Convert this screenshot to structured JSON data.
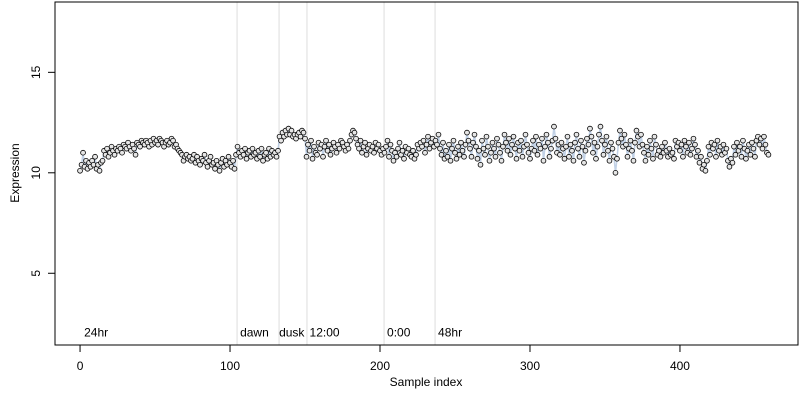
{
  "chart_data": {
    "type": "scatter",
    "xlabel": "Sample index",
    "ylabel": "Expression",
    "xlim": [
      -16.7,
      478.7
    ],
    "ylim": [
      1.43,
      18.5
    ],
    "xticks": [
      0,
      100,
      200,
      300,
      400
    ],
    "yticks": [
      5,
      10,
      15
    ],
    "point_fill": "#e6e6e6",
    "point_stroke": "#000000",
    "line_color": "#a6bddb",
    "vline_color": "#dddddd",
    "annotation_color": "#aaaaaa",
    "vlines": [
      104.7,
      132.7,
      151.3,
      202.7,
      236.7
    ],
    "annotations": [
      {
        "x": 2.7,
        "y": 2,
        "label": "24hr"
      },
      {
        "x": 106.7,
        "y": 2,
        "label": "dawn"
      },
      {
        "x": 132.7,
        "y": 2,
        "label": "dusk"
      },
      {
        "x": 153,
        "y": 2,
        "label": "12:00"
      },
      {
        "x": 204.7,
        "y": 2,
        "label": "0:00"
      },
      {
        "x": 238.7,
        "y": 2,
        "label": "48hr"
      }
    ],
    "x": [
      0,
      1,
      2,
      3,
      4,
      5,
      6,
      7,
      8,
      9,
      10,
      11,
      12,
      13,
      14,
      15,
      16,
      17,
      18,
      19,
      20,
      21,
      22,
      23,
      24,
      25,
      26,
      27,
      28,
      29,
      30,
      31,
      32,
      33,
      34,
      35,
      36,
      37,
      38,
      39,
      40,
      41,
      42,
      43,
      44,
      45,
      46,
      47,
      48,
      49,
      50,
      51,
      52,
      53,
      54,
      55,
      56,
      57,
      58,
      59,
      60,
      61,
      62,
      63,
      64,
      65,
      66,
      67,
      68,
      69,
      70,
      71,
      72,
      73,
      74,
      75,
      76,
      77,
      78,
      79,
      80,
      81,
      82,
      83,
      84,
      85,
      86,
      87,
      88,
      89,
      90,
      91,
      92,
      93,
      94,
      95,
      96,
      97,
      98,
      99,
      100,
      101,
      102,
      103,
      104,
      105,
      106,
      107,
      108,
      109,
      110,
      111,
      112,
      113,
      114,
      115,
      116,
      117,
      118,
      119,
      120,
      121,
      122,
      123,
      124,
      125,
      126,
      127,
      128,
      129,
      130,
      131,
      132,
      133,
      134,
      135,
      136,
      137,
      138,
      139,
      140,
      141,
      142,
      143,
      144,
      145,
      146,
      147,
      148,
      149,
      150,
      151,
      152,
      153,
      154,
      155,
      156,
      157,
      158,
      159,
      160,
      161,
      162,
      163,
      164,
      165,
      166,
      167,
      168,
      169,
      170,
      171,
      172,
      173,
      174,
      175,
      176,
      177,
      178,
      179,
      180,
      181,
      182,
      183,
      184,
      185,
      186,
      187,
      188,
      189,
      190,
      191,
      192,
      193,
      194,
      195,
      196,
      197,
      198,
      199,
      200,
      201,
      202,
      203,
      204,
      205,
      206,
      207,
      208,
      209,
      210,
      211,
      212,
      213,
      214,
      215,
      216,
      217,
      218,
      219,
      220,
      221,
      222,
      223,
      224,
      225,
      226,
      227,
      228,
      229,
      230,
      231,
      232,
      233,
      234,
      235,
      236,
      237,
      238,
      239,
      240,
      241,
      242,
      243,
      244,
      245,
      246,
      247,
      248,
      249,
      250,
      251,
      252,
      253,
      254,
      255,
      256,
      257,
      258,
      259,
      260,
      261,
      262,
      263,
      264,
      265,
      266,
      267,
      268,
      269,
      270,
      271,
      272,
      273,
      274,
      275,
      276,
      277,
      278,
      279,
      280,
      281,
      282,
      283,
      284,
      285,
      286,
      287,
      288,
      289,
      290,
      291,
      292,
      293,
      294,
      295,
      296,
      297,
      298,
      299,
      300,
      301,
      302,
      303,
      304,
      305,
      306,
      307,
      308,
      309,
      310,
      311,
      312,
      313,
      314,
      315,
      316,
      317,
      318,
      319,
      320,
      321,
      322,
      323,
      324,
      325,
      326,
      327,
      328,
      329,
      330,
      331,
      332,
      333,
      334,
      335,
      336,
      337,
      338,
      339,
      340,
      341,
      342,
      343,
      344,
      345,
      346,
      347,
      348,
      349,
      350,
      351,
      352,
      353,
      354,
      355,
      356,
      357,
      358,
      359,
      360,
      361,
      362,
      363,
      364,
      365,
      366,
      367,
      368,
      369,
      370,
      371,
      372,
      373,
      374,
      375,
      376,
      377,
      378,
      379,
      380,
      381,
      382,
      383,
      384,
      385,
      386,
      387,
      388,
      389,
      390,
      391,
      392,
      393,
      394,
      395,
      396,
      397,
      398,
      399,
      400,
      401,
      402,
      403,
      404,
      405,
      406,
      407,
      408,
      409,
      410,
      411,
      412,
      413,
      414,
      415,
      416,
      417,
      418,
      419,
      420,
      421,
      422,
      423,
      424,
      425,
      426,
      427,
      428,
      429,
      430,
      431,
      432,
      433,
      434,
      435,
      436,
      437,
      438,
      439,
      440,
      441,
      442,
      443,
      444,
      445,
      446,
      447,
      448,
      449,
      450,
      451,
      452,
      453,
      454,
      455,
      456,
      457,
      458,
      459
    ],
    "values": [
      10.1,
      10.4,
      11.0,
      10.3,
      10.6,
      10.2,
      10.5,
      10.3,
      10.6,
      10.4,
      10.8,
      10.2,
      10.4,
      10.1,
      10.5,
      10.6,
      11.1,
      10.9,
      11.2,
      10.8,
      11.0,
      11.3,
      11.1,
      10.9,
      11.2,
      11.1,
      11.3,
      11.2,
      11.0,
      11.4,
      11.3,
      11.2,
      11.5,
      11.3,
      11.1,
      11.4,
      11.2,
      10.9,
      11.5,
      11.4,
      11.3,
      11.6,
      11.5,
      11.4,
      11.6,
      11.5,
      11.3,
      11.6,
      11.4,
      11.7,
      11.5,
      11.6,
      11.4,
      11.7,
      11.6,
      11.5,
      11.3,
      11.5,
      11.6,
      11.4,
      11.5,
      11.7,
      11.6,
      11.3,
      11.4,
      11.2,
      11.1,
      11.0,
      10.9,
      10.6,
      10.8,
      10.9,
      10.7,
      10.8,
      10.6,
      10.7,
      10.9,
      10.5,
      10.8,
      10.6,
      10.4,
      10.7,
      10.6,
      10.9,
      10.5,
      10.3,
      10.6,
      10.8,
      10.4,
      10.5,
      10.2,
      10.6,
      10.4,
      10.1,
      10.5,
      10.7,
      10.3,
      10.6,
      10.4,
      10.8,
      10.5,
      10.3,
      10.6,
      10.2,
      10.9,
      11.3,
      11.0,
      10.8,
      11.1,
      10.9,
      11.2,
      10.7,
      11.0,
      11.1,
      10.8,
      11.2,
      10.9,
      11.0,
      10.7,
      11.1,
      10.8,
      11.2,
      10.6,
      10.9,
      11.0,
      10.7,
      11.2,
      10.8,
      11.1,
      10.9,
      11.0,
      10.8,
      11.1,
      11.8,
      11.6,
      12.0,
      11.8,
      12.1,
      11.9,
      12.2,
      11.9,
      12.1,
      11.8,
      11.9,
      11.7,
      11.9,
      12.0,
      11.8,
      12.1,
      12.0,
      11.7,
      10.8,
      11.4,
      11.1,
      11.6,
      10.7,
      11.3,
      11.0,
      10.9,
      11.5,
      11.2,
      11.4,
      10.8,
      11.3,
      11.6,
      11.1,
      11.4,
      10.9,
      11.2,
      11.5,
      11.3,
      11.0,
      11.4,
      11.2,
      11.6,
      11.5,
      11.3,
      11.1,
      11.4,
      11.2,
      11.6,
      11.9,
      12.1,
      12.0,
      11.7,
      11.4,
      11.2,
      11.6,
      11.0,
      11.3,
      11.5,
      10.9,
      11.2,
      11.4,
      11.1,
      11.3,
      11.0,
      11.5,
      11.2,
      11.4,
      11.1,
      10.9,
      11.2,
      11.0,
      11.3,
      11.6,
      10.8,
      11.4,
      11.1,
      10.6,
      11.0,
      10.8,
      11.2,
      11.5,
      10.9,
      11.1,
      10.7,
      11.3,
      11.0,
      11.2,
      10.9,
      10.8,
      11.1,
      10.7,
      10.9,
      11.4,
      11.2,
      11.5,
      11.3,
      11.6,
      11.0,
      11.4,
      11.8,
      11.2,
      11.5,
      11.7,
      11.3,
      11.6,
      11.4,
      11.9,
      11.2,
      10.9,
      11.5,
      10.7,
      11.1,
      10.8,
      11.4,
      10.6,
      11.2,
      11.6,
      11.0,
      10.7,
      11.3,
      10.9,
      11.5,
      11.1,
      10.8,
      11.4,
      12.0,
      11.6,
      11.2,
      10.8,
      11.5,
      11.9,
      11.3,
      10.7,
      11.1,
      10.4,
      11.6,
      11.2,
      10.9,
      11.8,
      11.3,
      10.6,
      11.0,
      11.5,
      11.2,
      10.8,
      11.7,
      11.4,
      11.0,
      10.6,
      11.3,
      11.9,
      11.5,
      11.1,
      11.7,
      10.9,
      11.4,
      11.8,
      11.2,
      10.7,
      11.5,
      11.1,
      11.6,
      10.8,
      11.3,
      11.9,
      11.4,
      11.0,
      10.7,
      11.2,
      11.6,
      11.1,
      11.8,
      10.9,
      11.4,
      11.2,
      11.7,
      10.6,
      11.3,
      11.9,
      11.5,
      10.8,
      11.2,
      11.6,
      12.3,
      11.7,
      11.0,
      11.4,
      10.9,
      11.5,
      11.2,
      10.7,
      11.3,
      11.8,
      10.8,
      11.4,
      11.1,
      10.6,
      11.5,
      11.9,
      11.2,
      10.8,
      11.6,
      11.3,
      10.5,
      11.1,
      11.7,
      11.4,
      12.2,
      11.8,
      11.0,
      11.5,
      10.7,
      11.3,
      11.9,
      12.3,
      11.6,
      10.9,
      11.4,
      11.8,
      11.1,
      10.6,
      11.5,
      11.2,
      10.8,
      10.0,
      10.7,
      11.5,
      12.1,
      11.7,
      11.3,
      11.9,
      11.4,
      10.8,
      11.2,
      11.6,
      11.1,
      10.6,
      11.5,
      12.1,
      11.8,
      11.3,
      11.9,
      11.4,
      11.0,
      10.6,
      11.3,
      10.9,
      11.6,
      11.2,
      10.7,
      11.8,
      11.4,
      10.9,
      11.1,
      10.8,
      11.3,
      11.0,
      11.5,
      11.1,
      10.8,
      11.2,
      10.9,
      11.0,
      10.7,
      11.6,
      11.3,
      11.5,
      11.1,
      11.4,
      10.8,
      11.6,
      11.3,
      11.0,
      11.5,
      10.9,
      11.2,
      11.7,
      11.4,
      10.8,
      11.1,
      10.5,
      10.8,
      10.2,
      10.4,
      10.1,
      10.6,
      11.3,
      10.9,
      11.5,
      11.2,
      11.4,
      10.8,
      11.6,
      11.1,
      11.3,
      10.9,
      11.4,
      11.0,
      11.2,
      10.6,
      10.3,
      10.7,
      10.5,
      11.3,
      10.9,
      11.5,
      11.1,
      11.3,
      10.8,
      11.6,
      11.2,
      10.7,
      11.1,
      11.4,
      10.9,
      11.5,
      11.2,
      10.8,
      11.6,
      11.8,
      11.4,
      11.7,
      11.2,
      11.8,
      11.4,
      11.0,
      10.9
    ]
  }
}
